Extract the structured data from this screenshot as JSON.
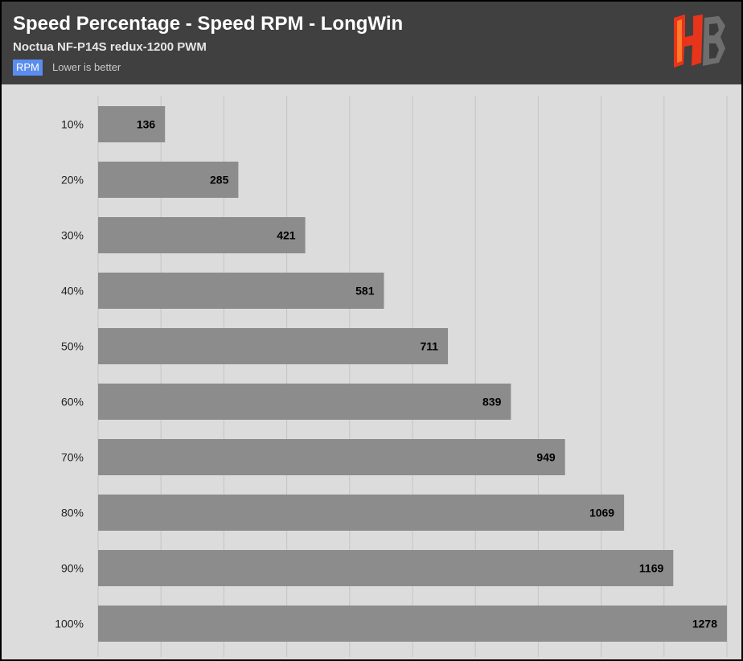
{
  "header": {
    "title": "Speed Percentage - Speed RPM - LongWin",
    "subtitle": "Noctua NF-P14S redux-1200 PWM",
    "unit_badge": "RPM",
    "note": "Lower is better"
  },
  "logo": {
    "icon": "hardware-busters-logo",
    "colors": [
      "#ff5a1f",
      "#d91e0a",
      "#8a8a8a",
      "#4a4a4a"
    ]
  },
  "colors": {
    "bar": "#8c8c8c",
    "background": "#dcdcdc",
    "header": "#404040",
    "badge": "#5b8def",
    "grid": "#c4c4c4"
  },
  "chart_data": {
    "type": "bar",
    "orientation": "horizontal",
    "categories": [
      "10%",
      "20%",
      "30%",
      "40%",
      "50%",
      "60%",
      "70%",
      "80%",
      "90%",
      "100%"
    ],
    "values": [
      136,
      285,
      421,
      581,
      711,
      839,
      949,
      1069,
      1169,
      1278
    ],
    "xlim": [
      0,
      1278
    ],
    "grid": true,
    "data_labels": true
  }
}
